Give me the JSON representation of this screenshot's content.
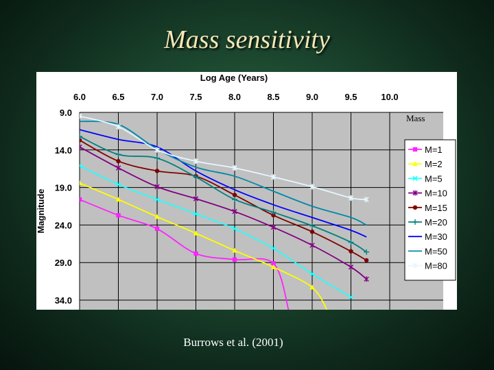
{
  "title": "Mass sensitivity",
  "citation": "Burrows et al. (2001)",
  "chart_data": {
    "type": "line",
    "xlabel": "Log Age (Years)",
    "ylabel": "Magnitude",
    "x_ticks": [
      "6.0",
      "6.5",
      "7.0",
      "7.5",
      "8.0",
      "8.5",
      "9.0",
      "9.5",
      "10.0"
    ],
    "y_ticks": [
      "9.0",
      "14.0",
      "19.0",
      "24.0",
      "29.0",
      "34.0"
    ],
    "xlim": [
      6.0,
      10.0
    ],
    "ylim": [
      9.0,
      34.0
    ],
    "y_inverted": true,
    "grid": true,
    "legend_title": "Mass",
    "legend_position": "right",
    "series": [
      {
        "name": "M=1",
        "color": "#ff22ff",
        "marker": "square",
        "x": [
          6.0,
          6.5,
          7.0,
          7.5,
          8.0,
          8.5,
          8.7
        ],
        "y": [
          20.6,
          22.7,
          24.5,
          27.8,
          28.6,
          29.1,
          35.5
        ]
      },
      {
        "name": "M=2",
        "color": "#ffff00",
        "marker": "triangle",
        "x": [
          6.0,
          6.5,
          7.0,
          7.5,
          8.0,
          8.5,
          9.0,
          9.2
        ],
        "y": [
          18.4,
          20.6,
          22.9,
          25.1,
          27.4,
          29.6,
          32.3,
          35.5
        ]
      },
      {
        "name": "M=5",
        "color": "#22ffff",
        "marker": "x",
        "x": [
          6.0,
          6.5,
          7.0,
          7.5,
          8.0,
          8.5,
          9.0,
          9.5
        ],
        "y": [
          16.1,
          18.6,
          20.6,
          22.5,
          24.5,
          27.1,
          30.5,
          33.6
        ]
      },
      {
        "name": "M=10",
        "color": "#800080",
        "marker": "star",
        "x": [
          6.0,
          6.5,
          7.0,
          7.5,
          8.0,
          8.5,
          9.0,
          9.5,
          9.7
        ],
        "y": [
          13.6,
          16.4,
          18.9,
          20.5,
          22.2,
          24.3,
          26.7,
          29.6,
          31.2
        ]
      },
      {
        "name": "M=15",
        "color": "#800000",
        "marker": "circle",
        "x": [
          6.0,
          6.5,
          7.0,
          7.5,
          8.0,
          8.5,
          9.0,
          9.5,
          9.7
        ],
        "y": [
          12.7,
          15.5,
          16.8,
          17.5,
          20.0,
          22.7,
          24.9,
          27.5,
          28.7
        ]
      },
      {
        "name": "M=20",
        "color": "#008080",
        "marker": "plus",
        "x": [
          6.0,
          6.5,
          7.0,
          7.5,
          8.0,
          8.5,
          9.0,
          9.5,
          9.7
        ],
        "y": [
          12.2,
          14.6,
          15.1,
          17.6,
          20.6,
          22.3,
          24.1,
          26.3,
          27.6
        ]
      },
      {
        "name": "M=30",
        "color": "#0000ff",
        "marker": "none",
        "x": [
          6.0,
          6.5,
          7.0,
          7.5,
          8.0,
          8.5,
          9.0,
          9.5,
          9.7
        ],
        "y": [
          11.3,
          12.6,
          13.6,
          16.8,
          19.3,
          21.3,
          23.0,
          24.7,
          25.6
        ]
      },
      {
        "name": "M=50",
        "color": "#0088aa",
        "marker": "none",
        "x": [
          6.0,
          6.5,
          7.0,
          7.5,
          8.0,
          8.5,
          9.0,
          9.5,
          9.7
        ],
        "y": [
          10.2,
          10.6,
          13.9,
          16.3,
          17.5,
          19.5,
          21.5,
          23.0,
          24.0
        ]
      },
      {
        "name": "M=80",
        "color": "#e6f7ff",
        "marker": "star",
        "x": [
          6.0,
          6.5,
          7.0,
          7.5,
          8.0,
          8.5,
          9.0,
          9.5,
          9.7
        ],
        "y": [
          9.5,
          10.9,
          14.0,
          15.5,
          16.4,
          17.6,
          18.9,
          20.4,
          20.6
        ]
      }
    ]
  }
}
